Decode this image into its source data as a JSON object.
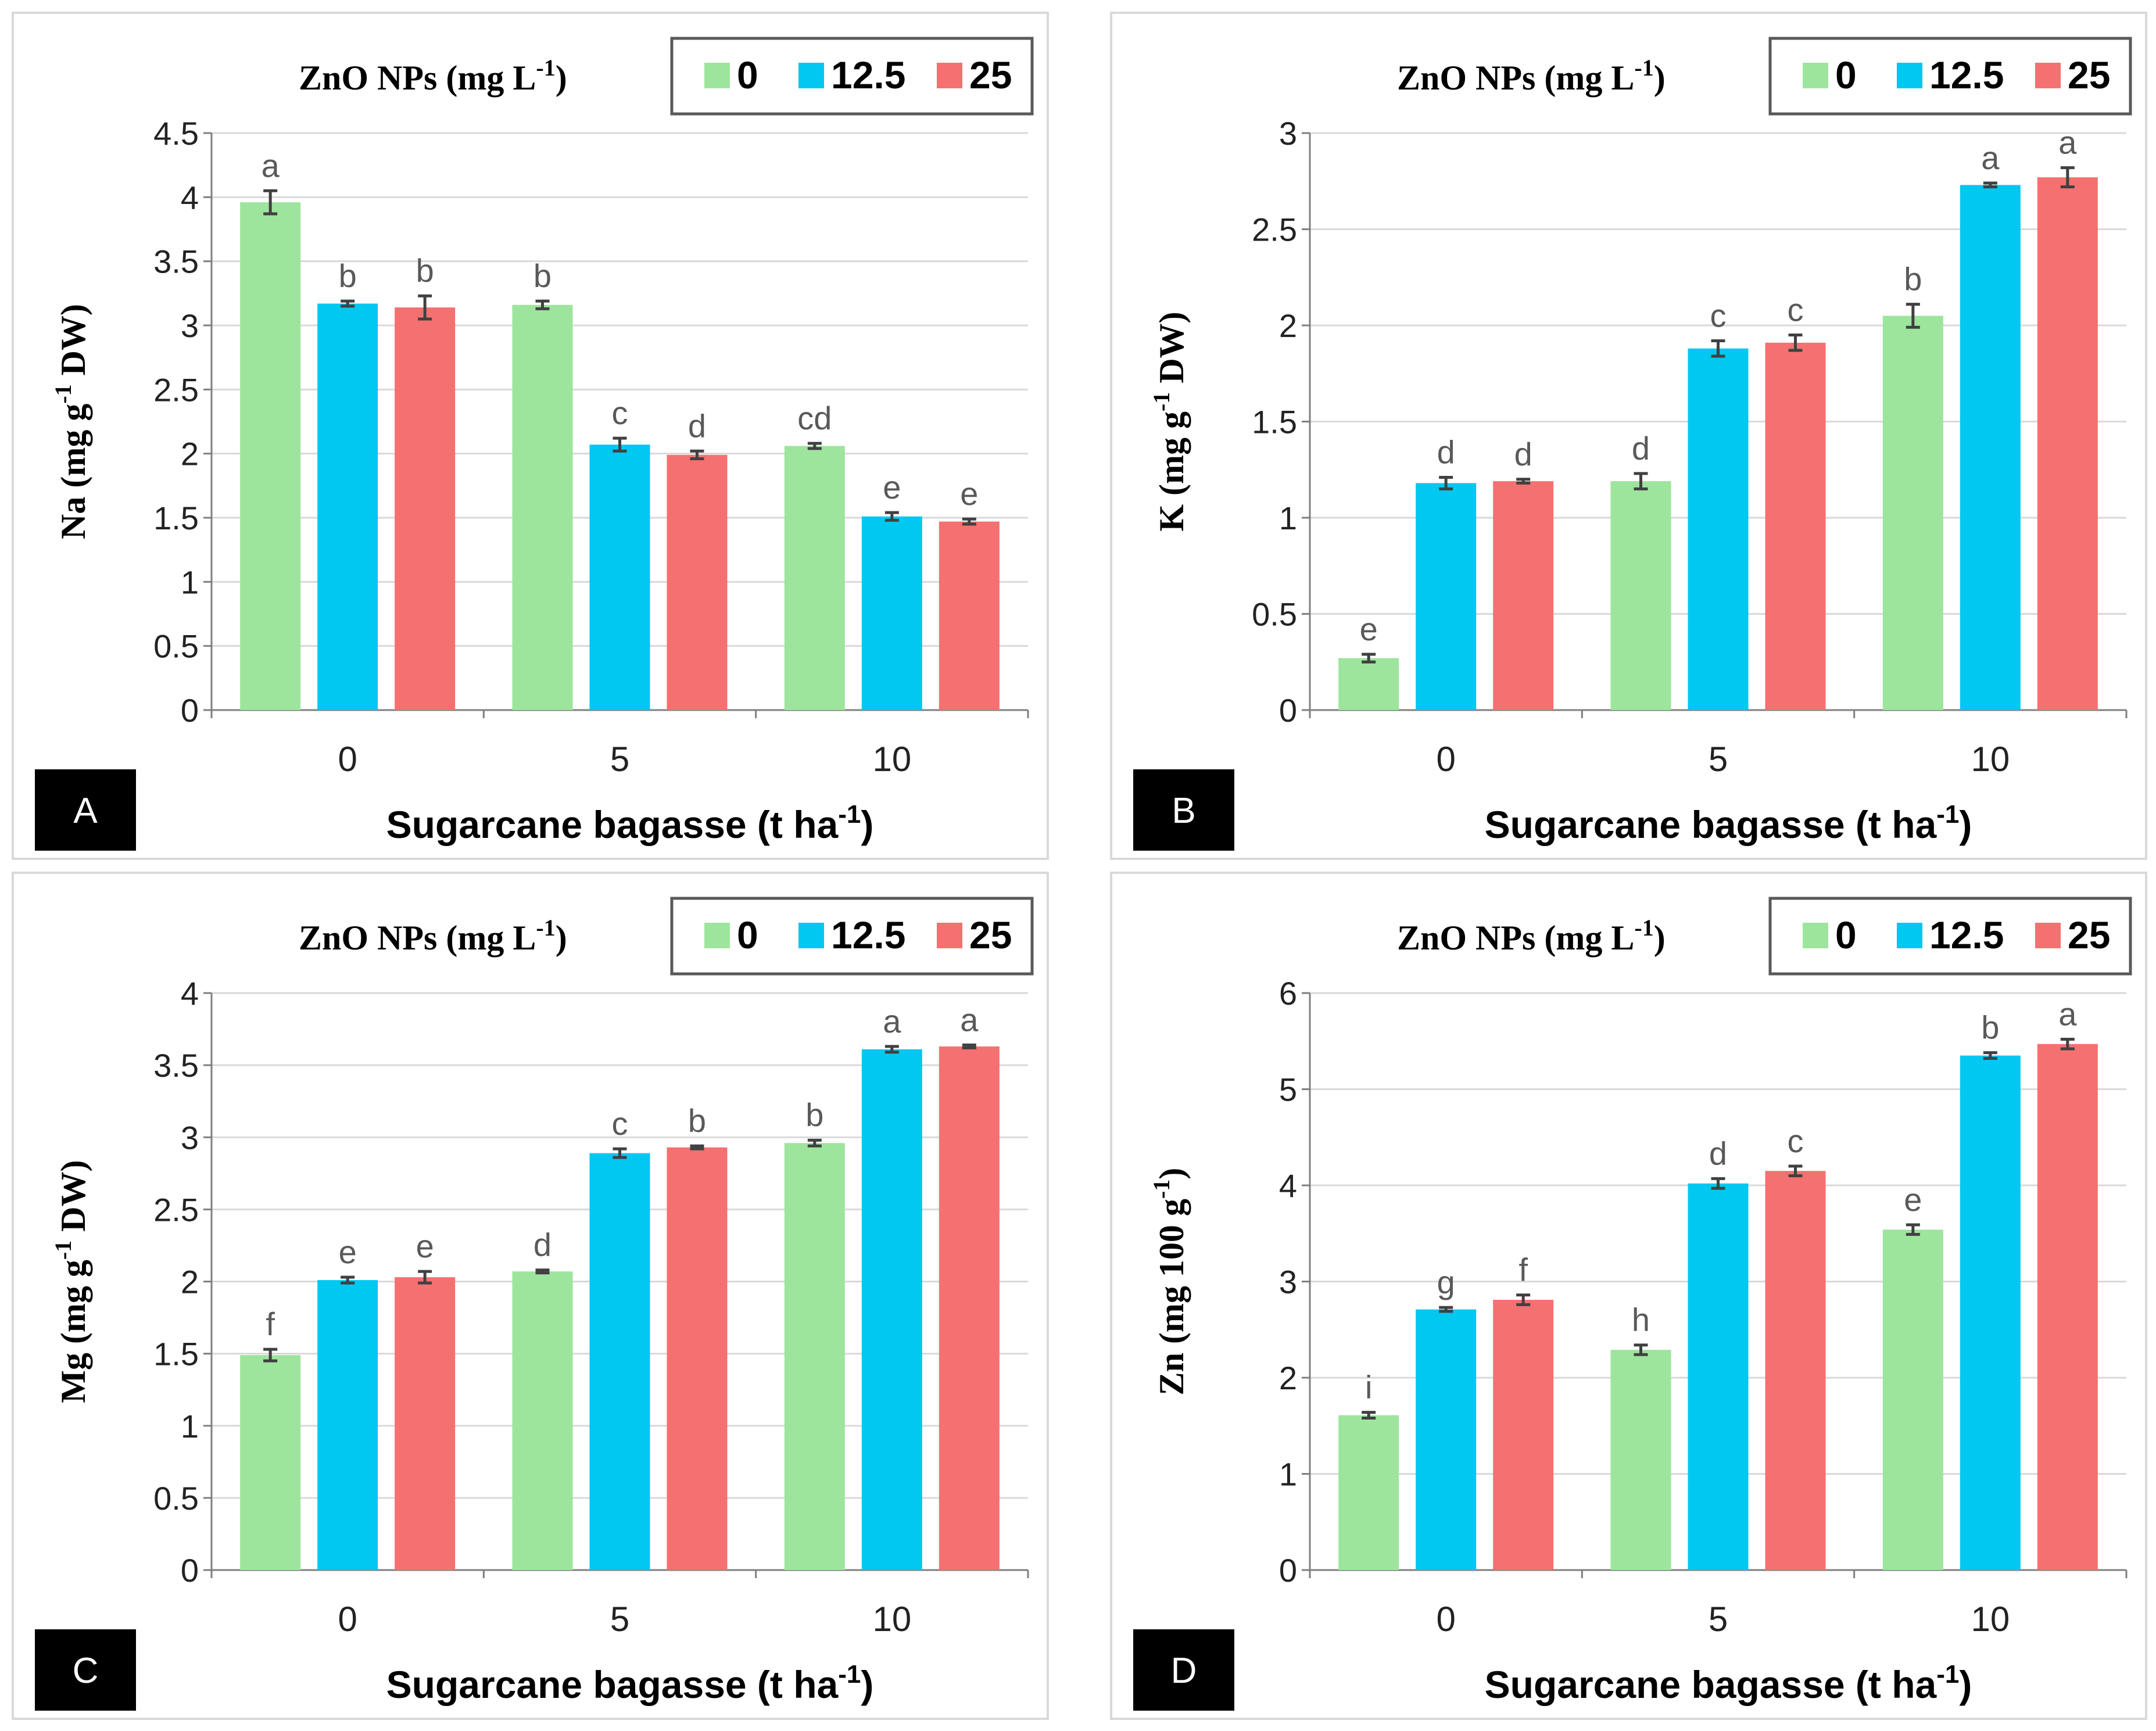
{
  "legend": {
    "title_main": "ZnO NPs (mg L",
    "title_sup": "-1",
    "title_end": ")",
    "entries": [
      "0",
      "12.5",
      "25"
    ],
    "colors": [
      "#9de59d",
      "#00c8f0",
      "#f57070"
    ]
  },
  "xaxis": {
    "label_main": "Sugarcane bagasse (t ha",
    "label_sup": "-1",
    "label_end": ")"
  },
  "chart_data": [
    {
      "type": "bar",
      "panel": "A",
      "categories": [
        "0",
        "5",
        "10"
      ],
      "ylabel": "Na (mg g-1 DW)",
      "ylabel_parts": [
        "Na (mg g",
        "-1",
        " DW)"
      ],
      "ylim": [
        0,
        4.5
      ],
      "yticks": [
        "0",
        "0.5",
        "1",
        "1.5",
        "2",
        "2.5",
        "3",
        "3.5",
        "4",
        "4.5"
      ],
      "grid": true,
      "series": [
        {
          "name": "0",
          "values": [
            3.96,
            3.16,
            2.06
          ],
          "errors": [
            0.09,
            0.03,
            0.02
          ],
          "letters": [
            "a",
            "b",
            "cd"
          ]
        },
        {
          "name": "12.5",
          "values": [
            3.17,
            2.07,
            1.51
          ],
          "errors": [
            0.02,
            0.05,
            0.03
          ],
          "letters": [
            "b",
            "c",
            "e"
          ]
        },
        {
          "name": "25",
          "values": [
            3.14,
            1.99,
            1.47
          ],
          "errors": [
            0.09,
            0.03,
            0.02
          ],
          "letters": [
            "b",
            "d",
            "e"
          ]
        }
      ]
    },
    {
      "type": "bar",
      "panel": "B",
      "categories": [
        "0",
        "5",
        "10"
      ],
      "ylabel": "K (mg g-1 DW)",
      "ylabel_parts": [
        "K (mg g",
        "-1",
        " DW)"
      ],
      "ylim": [
        0,
        3
      ],
      "yticks": [
        "0",
        "0.5",
        "1",
        "1.5",
        "2",
        "2.5",
        "3"
      ],
      "grid": true,
      "series": [
        {
          "name": "0",
          "values": [
            0.27,
            1.19,
            2.05
          ],
          "errors": [
            0.02,
            0.04,
            0.06
          ],
          "letters": [
            "e",
            "d",
            "b"
          ]
        },
        {
          "name": "12.5",
          "values": [
            1.18,
            1.88,
            2.73
          ],
          "errors": [
            0.03,
            0.04,
            0.01
          ],
          "letters": [
            "d",
            "c",
            "a"
          ]
        },
        {
          "name": "25",
          "values": [
            1.19,
            1.91,
            2.77
          ],
          "errors": [
            0.01,
            0.04,
            0.05
          ],
          "letters": [
            "d",
            "c",
            "a"
          ]
        }
      ]
    },
    {
      "type": "bar",
      "panel": "C",
      "categories": [
        "0",
        "5",
        "10"
      ],
      "ylabel": "Mg (mg g-1 DW)",
      "ylabel_parts": [
        "Mg (mg g",
        "-1",
        " DW)"
      ],
      "ylim": [
        0,
        4
      ],
      "yticks": [
        "0",
        "0.5",
        "1",
        "1.5",
        "2",
        "2.5",
        "3",
        "3.5",
        "4"
      ],
      "grid": true,
      "series": [
        {
          "name": "0",
          "values": [
            1.49,
            2.07,
            2.96
          ],
          "errors": [
            0.04,
            0.01,
            0.02
          ],
          "letters": [
            "f",
            "d",
            "b"
          ]
        },
        {
          "name": "12.5",
          "values": [
            2.01,
            2.89,
            3.61
          ],
          "errors": [
            0.02,
            0.03,
            0.02
          ],
          "letters": [
            "e",
            "c",
            "a"
          ]
        },
        {
          "name": "25",
          "values": [
            2.03,
            2.93,
            3.63
          ],
          "errors": [
            0.04,
            0.01,
            0.01
          ],
          "letters": [
            "e",
            "b",
            "a"
          ]
        }
      ]
    },
    {
      "type": "bar",
      "panel": "D",
      "categories": [
        "0",
        "5",
        "10"
      ],
      "ylabel": "Zn (mg 100 g-1)",
      "ylabel_parts": [
        "Zn (mg 100 g",
        "-1",
        ")"
      ],
      "ylim": [
        0,
        6
      ],
      "yticks": [
        "0",
        "1",
        "2",
        "3",
        "4",
        "5",
        "6"
      ],
      "grid": true,
      "series": [
        {
          "name": "0",
          "values": [
            1.61,
            2.29,
            3.54
          ],
          "errors": [
            0.03,
            0.05,
            0.05
          ],
          "letters": [
            "i",
            "h",
            "e"
          ]
        },
        {
          "name": "12.5",
          "values": [
            2.71,
            4.02,
            5.35
          ],
          "errors": [
            0.02,
            0.05,
            0.03
          ],
          "letters": [
            "g",
            "d",
            "b"
          ]
        },
        {
          "name": "25",
          "values": [
            2.81,
            4.15,
            5.47
          ],
          "errors": [
            0.05,
            0.05,
            0.05
          ],
          "letters": [
            "f",
            "c",
            "a"
          ]
        }
      ]
    }
  ]
}
